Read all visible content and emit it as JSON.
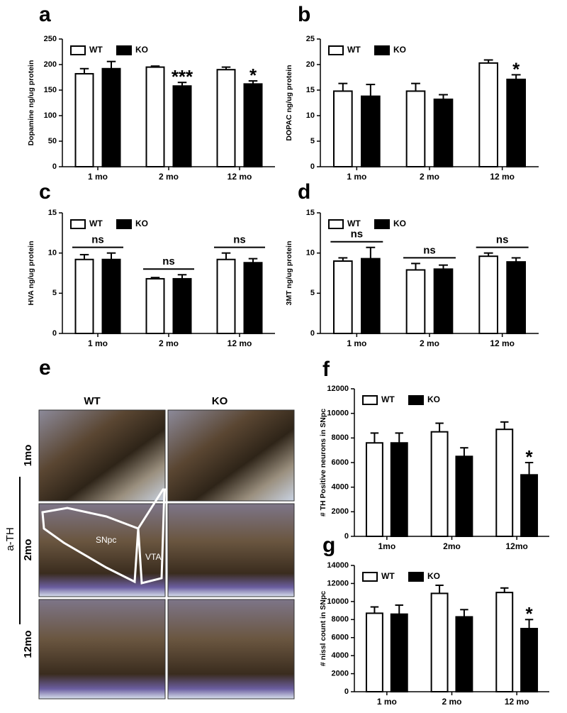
{
  "chart_data": [
    {
      "type": "bar",
      "panel": "a",
      "ylabel": "Dopamine ng/ug protein",
      "categories": [
        "1 mo",
        "2 mo",
        "12 mo"
      ],
      "series": [
        {
          "name": "WT",
          "color": "#ffffff",
          "values": [
            182,
            195,
            190
          ],
          "errors": [
            10,
            2,
            5
          ]
        },
        {
          "name": "KO",
          "color": "#000000",
          "values": [
            192,
            158,
            162
          ],
          "errors": [
            14,
            7,
            6
          ]
        }
      ],
      "annotations": [
        null,
        "***",
        "*"
      ],
      "ylim": [
        0,
        250
      ],
      "yticks": [
        0,
        50,
        100,
        150,
        200,
        250
      ]
    },
    {
      "type": "bar",
      "panel": "b",
      "ylabel": "DOPAC ng/ug protein",
      "categories": [
        "1 mo",
        "2 mo",
        "12 mo"
      ],
      "series": [
        {
          "name": "WT",
          "color": "#ffffff",
          "values": [
            14.8,
            14.8,
            20.3
          ],
          "errors": [
            1.5,
            1.5,
            0.6
          ]
        },
        {
          "name": "KO",
          "color": "#000000",
          "values": [
            13.8,
            13.2,
            17.1
          ],
          "errors": [
            2.3,
            0.9,
            0.9
          ]
        }
      ],
      "annotations": [
        null,
        null,
        "*"
      ],
      "ylim": [
        0,
        25
      ],
      "yticks": [
        0,
        5,
        10,
        15,
        20,
        25
      ]
    },
    {
      "type": "bar",
      "panel": "c",
      "ylabel": "HVA ng/ug protein",
      "categories": [
        "1 mo",
        "2 mo",
        "12 mo"
      ],
      "series": [
        {
          "name": "WT",
          "color": "#ffffff",
          "values": [
            9.2,
            6.8,
            9.2
          ],
          "errors": [
            0.6,
            0.15,
            0.8
          ]
        },
        {
          "name": "KO",
          "color": "#000000",
          "values": [
            9.2,
            6.8,
            8.8
          ],
          "errors": [
            0.8,
            0.5,
            0.5
          ]
        }
      ],
      "annotations": [
        "ns",
        "ns",
        "ns"
      ],
      "ylim": [
        0,
        15
      ],
      "yticks": [
        0,
        5,
        10,
        15
      ]
    },
    {
      "type": "bar",
      "panel": "d",
      "ylabel": "3MT ng/ug protein",
      "categories": [
        "1 mo",
        "2 mo",
        "12 mo"
      ],
      "series": [
        {
          "name": "WT",
          "color": "#ffffff",
          "values": [
            9.0,
            7.9,
            9.6
          ],
          "errors": [
            0.4,
            0.8,
            0.4
          ]
        },
        {
          "name": "KO",
          "color": "#000000",
          "values": [
            9.3,
            8.0,
            8.9
          ],
          "errors": [
            1.4,
            0.5,
            0.5
          ]
        }
      ],
      "annotations": [
        "ns",
        "ns",
        "ns"
      ],
      "ylim": [
        0,
        15
      ],
      "yticks": [
        0,
        5,
        10,
        15
      ]
    },
    {
      "type": "bar",
      "panel": "f",
      "ylabel": "# TH Positive neurons in SNpc",
      "categories": [
        "1mo",
        "2mo",
        "12mo"
      ],
      "series": [
        {
          "name": "WT",
          "color": "#ffffff",
          "values": [
            7600,
            8500,
            8700
          ],
          "errors": [
            800,
            700,
            600
          ]
        },
        {
          "name": "KO",
          "color": "#000000",
          "values": [
            7600,
            6500,
            5000
          ],
          "errors": [
            800,
            700,
            1000
          ]
        }
      ],
      "annotations": [
        null,
        null,
        "*"
      ],
      "ylim": [
        0,
        12000
      ],
      "yticks": [
        0,
        2000,
        4000,
        6000,
        8000,
        10000,
        12000
      ]
    },
    {
      "type": "bar",
      "panel": "g",
      "ylabel": "# nissl count in SNpc",
      "categories": [
        "1 mo",
        "2 mo",
        "12 mo"
      ],
      "series": [
        {
          "name": "WT",
          "color": "#ffffff",
          "values": [
            8700,
            10900,
            11000
          ],
          "errors": [
            700,
            900,
            500
          ]
        },
        {
          "name": "KO",
          "color": "#000000",
          "values": [
            8600,
            8300,
            7000
          ],
          "errors": [
            1000,
            800,
            1000
          ]
        }
      ],
      "annotations": [
        null,
        null,
        "*"
      ],
      "ylim": [
        0,
        14000
      ],
      "yticks": [
        0,
        2000,
        4000,
        6000,
        8000,
        10000,
        12000,
        14000
      ]
    }
  ],
  "micrograph_panel": {
    "panel": "e",
    "columns": [
      "WT",
      "KO"
    ],
    "rows": [
      "1mo",
      "2mo",
      "12mo"
    ],
    "stain": "a-TH",
    "regions": [
      "SNpc",
      "VTA"
    ]
  }
}
